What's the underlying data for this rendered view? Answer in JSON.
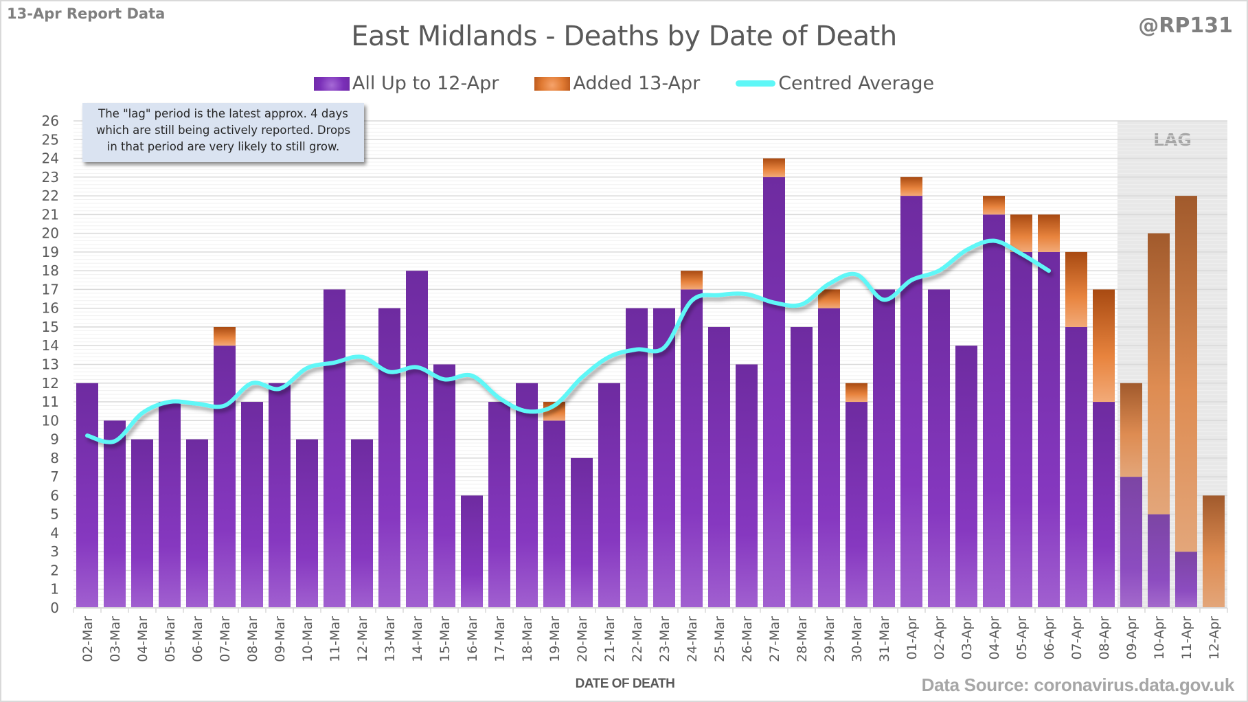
{
  "header": {
    "report_label": "13-Apr Report Data",
    "handle": "@RP131",
    "title": "East Midlands - Deaths by Date of Death"
  },
  "legend": {
    "items": [
      {
        "label": "All Up to 12-Apr",
        "icon": "purple-bar-swatch"
      },
      {
        "label": "Added 13-Apr",
        "icon": "orange-bar-swatch"
      },
      {
        "label": "Centred Average",
        "icon": "cyan-line-swatch"
      }
    ]
  },
  "note": {
    "lines": [
      "The \"lag\" period is the latest approx. 4 days",
      "which are still being actively reported.  Drops",
      "in that period are very likely to still grow."
    ]
  },
  "lag_label": "LAG",
  "footer": {
    "x_axis_title": "DATE OF DEATH",
    "source": "Data Source: coronavirus.data.gov.uk"
  },
  "colors": {
    "all_up_to": "#7a32b8",
    "added": "#e07a33",
    "average": "#5ef7f7",
    "lag_shade": "#e8e8e8",
    "text": "#595959"
  },
  "chart_data": {
    "type": "bar",
    "stacked": true,
    "title": "East Midlands - Deaths by Date of Death",
    "xlabel": "DATE OF DEATH",
    "ylabel": "",
    "ylim": [
      0,
      26
    ],
    "yticks": [
      0,
      1,
      2,
      3,
      4,
      5,
      6,
      7,
      8,
      9,
      10,
      11,
      12,
      13,
      14,
      15,
      16,
      17,
      18,
      19,
      20,
      21,
      22,
      23,
      24,
      25,
      26
    ],
    "grid": true,
    "legend_position": "top",
    "categories": [
      "02-Mar",
      "03-Mar",
      "04-Mar",
      "05-Mar",
      "06-Mar",
      "07-Mar",
      "08-Mar",
      "09-Mar",
      "10-Mar",
      "11-Mar",
      "12-Mar",
      "13-Mar",
      "14-Mar",
      "15-Mar",
      "16-Mar",
      "17-Mar",
      "18-Mar",
      "19-Mar",
      "20-Mar",
      "21-Mar",
      "22-Mar",
      "23-Mar",
      "24-Mar",
      "25-Mar",
      "26-Mar",
      "27-Mar",
      "28-Mar",
      "29-Mar",
      "30-Mar",
      "31-Mar",
      "01-Apr",
      "02-Apr",
      "03-Apr",
      "04-Apr",
      "05-Apr",
      "06-Apr",
      "07-Apr",
      "08-Apr",
      "09-Apr",
      "10-Apr",
      "11-Apr",
      "12-Apr"
    ],
    "lag_categories": [
      "09-Apr",
      "10-Apr",
      "11-Apr",
      "12-Apr"
    ],
    "series": [
      {
        "name": "All Up to 12-Apr",
        "type": "bar",
        "values": [
          12,
          10,
          9,
          11,
          9,
          14,
          11,
          12,
          9,
          17,
          9,
          16,
          18,
          13,
          6,
          11,
          12,
          10,
          8,
          12,
          16,
          16,
          17,
          15,
          13,
          23,
          15,
          16,
          11,
          17,
          22,
          17,
          14,
          21,
          19,
          19,
          15,
          11,
          7,
          5,
          3,
          0
        ]
      },
      {
        "name": "Added 13-Apr",
        "type": "bar",
        "values": [
          0,
          0,
          0,
          0,
          0,
          1,
          0,
          0,
          0,
          0,
          0,
          0,
          0,
          0,
          0,
          0,
          0,
          1,
          0,
          0,
          0,
          0,
          1,
          0,
          0,
          1,
          0,
          1,
          1,
          0,
          1,
          0,
          0,
          1,
          2,
          2,
          4,
          6,
          5,
          15,
          19,
          6
        ]
      },
      {
        "name": "Centred Average",
        "type": "line",
        "values": [
          9.2,
          8.9,
          10.4,
          11.0,
          10.9,
          10.8,
          12.0,
          11.7,
          12.8,
          13.1,
          13.4,
          12.6,
          12.85,
          12.2,
          12.4,
          11.2,
          10.5,
          10.8,
          12.3,
          13.4,
          13.8,
          13.9,
          16.4,
          16.7,
          16.75,
          16.3,
          16.2,
          17.3,
          17.8,
          16.45,
          17.5,
          18.0,
          19.1,
          19.6,
          18.9,
          18.0,
          null,
          null,
          null,
          null,
          null,
          null
        ]
      }
    ]
  }
}
